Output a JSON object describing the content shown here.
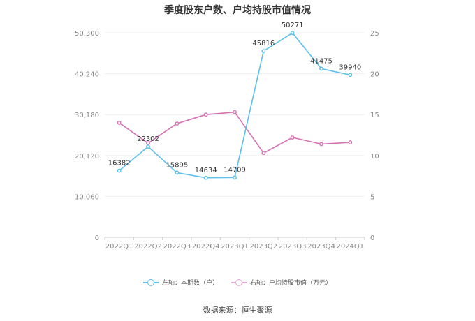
{
  "chart_data": {
    "type": "line",
    "title": "季度股东户数、户均持股市值情况",
    "categories": [
      "2022Q1",
      "2022Q2",
      "2022Q3",
      "2022Q4",
      "2023Q1",
      "2023Q2",
      "2023Q3",
      "2023Q4",
      "2024Q1"
    ],
    "y_left": {
      "min": 0,
      "max": 50300,
      "ticks": [
        "0",
        "10,060",
        "20,120",
        "30,180",
        "40,240",
        "50,300"
      ]
    },
    "y_right": {
      "min": 0,
      "max": 25,
      "ticks": [
        "0",
        "5",
        "10",
        "15",
        "20",
        "25"
      ]
    },
    "series": [
      {
        "name": "左轴：本期数（户）",
        "axis": "left",
        "color": "#5bc0eb",
        "values": [
          16382,
          22302,
          15895,
          14634,
          14709,
          45816,
          50271,
          41475,
          39940
        ],
        "labels": [
          "16382",
          "22302",
          "15895",
          "14634",
          "14709",
          "45816",
          "50271",
          "41475",
          "39940"
        ]
      },
      {
        "name": "右轴：户均持股市值（万元）",
        "axis": "right",
        "color": "#d672b4",
        "values": [
          14.0,
          11.5,
          13.9,
          15.0,
          15.3,
          10.3,
          12.2,
          11.4,
          11.6
        ]
      }
    ],
    "grid": true,
    "legend_position": "bottom"
  },
  "footer": {
    "source": "数据来源：恒生聚源"
  }
}
